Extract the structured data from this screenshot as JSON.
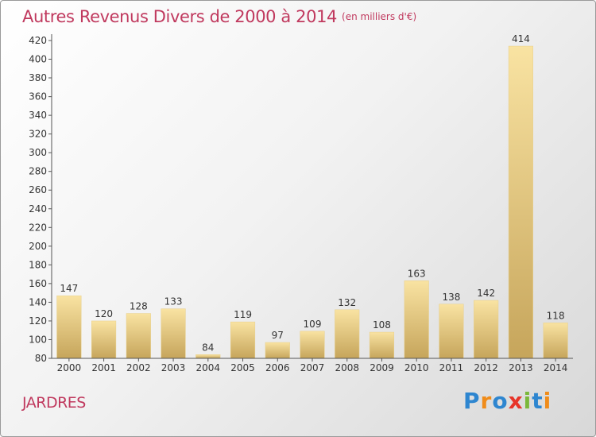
{
  "header": {
    "title": "Autres Revenus Divers de 2000 à 2014",
    "unit_note": "(en milliers d'€)"
  },
  "commune": "JARDRES",
  "logo": {
    "text": "Proxiti",
    "letters": [
      "P",
      "r",
      "o",
      "x",
      "i",
      "t",
      "i"
    ]
  },
  "colors": {
    "title": "#c0395e",
    "bar_light": "#f7df9a",
    "bar_dark": "#c8a75c",
    "axis": "#555555"
  },
  "chart_data": {
    "type": "bar",
    "categories": [
      "2000",
      "2001",
      "2002",
      "2003",
      "2004",
      "2005",
      "2006",
      "2007",
      "2008",
      "2009",
      "2010",
      "2011",
      "2012",
      "2013",
      "2014"
    ],
    "values": [
      147,
      120,
      128,
      133,
      84,
      119,
      97,
      109,
      132,
      108,
      163,
      138,
      142,
      414,
      118
    ],
    "title": "Autres Revenus Divers de 2000 à 2014",
    "ylim": [
      80,
      420
    ],
    "yticks": [
      80,
      100,
      120,
      140,
      160,
      180,
      200,
      220,
      240,
      260,
      280,
      300,
      320,
      340,
      360,
      380,
      400,
      420
    ],
    "grid": false,
    "data_labels": true
  }
}
